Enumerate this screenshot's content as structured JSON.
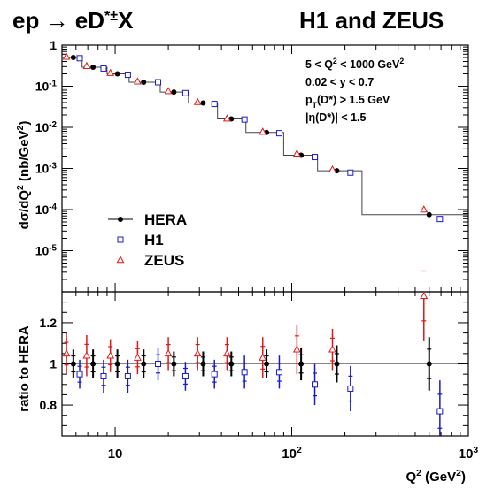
{
  "header": {
    "process": "ep → eD*±X",
    "collaboration": "H1 and ZEUS"
  },
  "chart_data": [
    {
      "type": "scatter",
      "panel": "top",
      "xlabel": "Q² (GeV²)",
      "ylabel": "dσ/dQ² (nb/GeV²)",
      "xscale": "log",
      "yscale": "log",
      "xlim": [
        5,
        1000
      ],
      "ylim": [
        1e-06,
        1
      ],
      "cuts": [
        "5 < Q² < 1000 GeV²",
        "0.02 < y < 0.7",
        "pT(D*) > 1.5 GeV",
        "|η(D*)| < 1.5"
      ],
      "legend": [
        "HERA",
        "H1",
        "ZEUS"
      ],
      "legend_position": "bottom-left",
      "x_tick_labels": [
        "10",
        "10²",
        "10³"
      ],
      "y_tick_labels": [
        "1",
        "10⁻¹",
        "10⁻²",
        "10⁻³",
        "10⁻⁴",
        "10⁻⁵"
      ],
      "hera_bins": [
        5,
        6.5,
        9,
        12,
        18,
        26,
        38,
        55,
        90,
        140,
        250,
        1000
      ],
      "series": [
        {
          "name": "HERA",
          "x": [
            5.8,
            7.5,
            10.3,
            14.5,
            21.5,
            31.5,
            45.5,
            72,
            113,
            180,
            600
          ],
          "values": [
            0.5,
            0.29,
            0.2,
            0.125,
            0.072,
            0.039,
            0.016,
            0.0075,
            0.0021,
            0.00088,
            7.5e-05
          ]
        },
        {
          "name": "H1",
          "x": [
            6.3,
            8.6,
            11.8,
            17.5,
            25,
            36.5,
            54,
            85,
            135,
            215,
            690
          ],
          "values": [
            0.48,
            0.27,
            0.19,
            0.125,
            0.068,
            0.037,
            0.0155,
            0.0072,
            0.0019,
            0.00079,
            5.9e-05
          ]
        },
        {
          "name": "ZEUS",
          "x": [
            5.3,
            6.9,
            9.4,
            13.4,
            20,
            29.3,
            43,
            68.5,
            107,
            170,
            560
          ],
          "values": [
            0.52,
            0.31,
            0.21,
            0.13,
            0.076,
            0.041,
            0.0163,
            0.0078,
            0.0023,
            0.00094,
            0.0001
          ]
        }
      ]
    },
    {
      "type": "scatter",
      "panel": "bottom",
      "xlabel": "Q² (GeV²)",
      "ylabel": "ratio to HERA",
      "xscale": "log",
      "xlim": [
        5,
        1000
      ],
      "ylim": [
        0.65,
        1.35
      ],
      "y_tick_labels": [
        "0.8",
        "1",
        "1.2"
      ],
      "series": [
        {
          "name": "HERA",
          "x": [
            5.8,
            7.5,
            10.3,
            14.5,
            21.5,
            31.5,
            45.5,
            72,
            113,
            180,
            600
          ],
          "values": [
            1.0,
            1.0,
            1.0,
            1.0,
            1.0,
            1.0,
            1.0,
            1.0,
            1.0,
            1.0,
            1.0
          ],
          "err_low": [
            0.07,
            0.07,
            0.07,
            0.07,
            0.06,
            0.06,
            0.06,
            0.07,
            0.08,
            0.09,
            0.13
          ],
          "err_high": [
            0.07,
            0.07,
            0.07,
            0.07,
            0.06,
            0.06,
            0.06,
            0.07,
            0.08,
            0.09,
            0.13
          ]
        },
        {
          "name": "H1",
          "x": [
            6.3,
            8.6,
            11.8,
            17.5,
            25,
            36.5,
            54,
            85,
            135,
            215,
            690
          ],
          "values": [
            0.95,
            0.94,
            0.94,
            1.0,
            0.94,
            0.95,
            0.96,
            0.96,
            0.9,
            0.88,
            0.77
          ],
          "err_low": [
            0.07,
            0.08,
            0.08,
            0.08,
            0.07,
            0.07,
            0.08,
            0.08,
            0.1,
            0.11,
            0.15
          ],
          "err_high": [
            0.07,
            0.08,
            0.08,
            0.08,
            0.07,
            0.07,
            0.08,
            0.08,
            0.1,
            0.11,
            0.15
          ]
        },
        {
          "name": "ZEUS",
          "x": [
            5.3,
            6.9,
            9.4,
            13.4,
            20,
            29.3,
            43,
            68.5,
            107,
            170,
            560
          ],
          "values": [
            1.05,
            1.04,
            1.04,
            1.03,
            1.05,
            1.05,
            1.05,
            1.03,
            1.07,
            1.07,
            1.33
          ],
          "err_low": [
            0.1,
            0.1,
            0.08,
            0.08,
            0.08,
            0.08,
            0.08,
            0.1,
            0.12,
            0.1,
            0.22
          ],
          "err_high": [
            0.1,
            0.1,
            0.08,
            0.08,
            0.08,
            0.08,
            0.08,
            0.1,
            0.12,
            0.1,
            0.22
          ]
        }
      ]
    }
  ],
  "colors": {
    "HERA": "#000000",
    "H1": "#1a1acc",
    "ZEUS": "#e01818",
    "unity_line": "#888888"
  }
}
